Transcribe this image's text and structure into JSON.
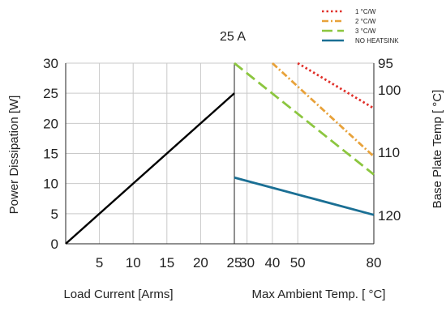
{
  "chart_data": {
    "type": "line",
    "title": "25 A",
    "left_panel": {
      "xlabel": "Load Current [Arms]",
      "ylabel": "Power Dissipation [W]",
      "xlim": [
        0,
        25
      ],
      "ylim": [
        0,
        30
      ],
      "x_ticks": [
        "5",
        "10",
        "15",
        "20",
        "25"
      ],
      "y_ticks": [
        "0",
        "5",
        "10",
        "15",
        "20",
        "25",
        "30"
      ],
      "series": [
        {
          "color": "#000000",
          "points": [
            [
              0,
              0
            ],
            [
              25,
              25
            ]
          ]
        }
      ]
    },
    "right_panel": {
      "xlabel": "Max Ambient Temp. [   °C]",
      "ylabel": "Base Plate Temp [   °C]",
      "xlim": [
        25,
        80
      ],
      "right_axis_ticks": [
        "95",
        "100",
        "110",
        "120"
      ],
      "x_ticks": [
        "30",
        "40",
        "50",
        "80"
      ],
      "series": [
        {
          "name": "1 °C/W",
          "color": "#e0302a",
          "dash": "dot",
          "points": [
            [
              50,
              30
            ],
            [
              80,
              22.5
            ]
          ]
        },
        {
          "name": "2 °C/W",
          "color": "#e8a23a",
          "dash": "dashdot",
          "points": [
            [
              40,
              30
            ],
            [
              80,
              14.5
            ]
          ]
        },
        {
          "name": "3 °C/W",
          "color": "#8cc63f",
          "dash": "dash",
          "points": [
            [
              25,
              30
            ],
            [
              80,
              11.5
            ]
          ]
        },
        {
          "name": "NO HEATSINK",
          "color": "#1a6f94",
          "dash": "solid",
          "points": [
            [
              25,
              11
            ],
            [
              80,
              4.8
            ]
          ]
        }
      ]
    }
  }
}
